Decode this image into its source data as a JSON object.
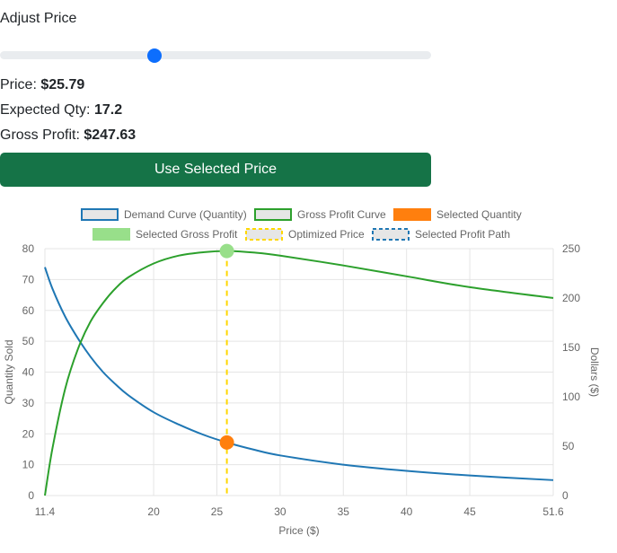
{
  "header": {
    "title": "Adjust Price"
  },
  "slider": {
    "value": 25.79,
    "min": 11.4,
    "max": 51.6
  },
  "stats": {
    "price_label": "Price:",
    "price_value": "$25.79",
    "qty_label": "Expected Qty:",
    "qty_value": "17.2",
    "profit_label": "Gross Profit:",
    "profit_value": "$247.63"
  },
  "button": {
    "label": "Use Selected Price"
  },
  "legend": [
    {
      "label": "Demand Curve (Quantity)",
      "fill": "#e6e6e6",
      "stroke": "#1f77b4",
      "dash": false
    },
    {
      "label": "Gross Profit Curve",
      "fill": "#e6e6e6",
      "stroke": "#2ca02c",
      "dash": false
    },
    {
      "label": "Selected Quantity",
      "fill": "#ff7f0e",
      "stroke": "#ff7f0e",
      "dash": false
    },
    {
      "label": "Selected Gross Profit",
      "fill": "#98df8a",
      "stroke": "#98df8a",
      "dash": false
    },
    {
      "label": "Optimized Price",
      "fill": "#e6e6e6",
      "stroke": "#ffd700",
      "dash": true
    },
    {
      "label": "Selected Profit Path",
      "fill": "#e6e6e6",
      "stroke": "#1f77b4",
      "dash": true
    }
  ],
  "chart_data": {
    "type": "line",
    "xlabel": "Price ($)",
    "ylabel_left": "Quantity Sold",
    "ylabel_right": "Dollars ($)",
    "xlim": [
      11.4,
      51.6
    ],
    "x_ticks": [
      11.4,
      20,
      25,
      30,
      35,
      40,
      45,
      51.6
    ],
    "y_left_lim": [
      0,
      80
    ],
    "y_left_ticks": [
      0,
      10,
      20,
      30,
      40,
      50,
      60,
      70,
      80
    ],
    "y_right_lim": [
      0,
      250
    ],
    "y_right_ticks": [
      0,
      50,
      100,
      150,
      200,
      250
    ],
    "series": [
      {
        "name": "Demand Curve (Quantity)",
        "axis": "left",
        "color": "#1f77b4",
        "x": [
          11.4,
          12,
          13,
          14,
          15,
          16,
          17,
          18,
          20,
          22,
          24,
          25.79,
          28,
          30,
          35,
          40,
          45,
          51.6
        ],
        "y": [
          74,
          67,
          58,
          51,
          45,
          40,
          36,
          32.5,
          27,
          23,
          19.6,
          17.2,
          14.8,
          13,
          10,
          8,
          6.5,
          5
        ]
      },
      {
        "name": "Gross Profit Curve",
        "axis": "right",
        "color": "#2ca02c",
        "x": [
          11.4,
          12,
          13,
          14,
          15,
          16,
          17,
          18,
          20,
          22,
          24,
          25.79,
          28,
          30,
          35,
          40,
          45,
          51.6
        ],
        "y": [
          0,
          48,
          108,
          148,
          176,
          195,
          210,
          221,
          235,
          243,
          246.5,
          247.63,
          246,
          243,
          233,
          222,
          211,
          200
        ]
      }
    ],
    "selected": {
      "price": 25.79,
      "quantity": 17.2,
      "gross_profit": 247.63
    }
  }
}
